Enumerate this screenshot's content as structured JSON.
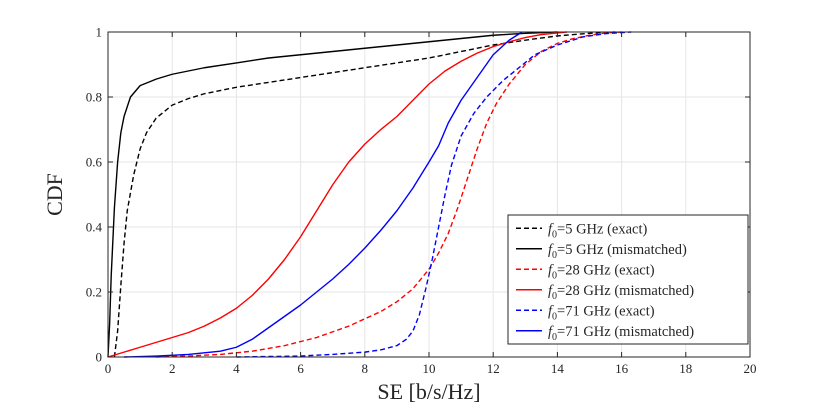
{
  "chart_data": {
    "type": "line",
    "title": "",
    "xlabel": "SE [b/s/Hz]",
    "ylabel": "CDF",
    "xlim": [
      0,
      20
    ],
    "ylim": [
      0,
      1
    ],
    "xticks": [
      "0",
      "2",
      "4",
      "6",
      "8",
      "10",
      "12",
      "14",
      "16",
      "18",
      "20"
    ],
    "yticks": [
      "0",
      "0.2",
      "0.4",
      "0.6",
      "0.8",
      "1"
    ],
    "grid": true,
    "legend_position": "bottom-right",
    "series": [
      {
        "name": "f0=5 GHz (exact)",
        "legend_var": "f",
        "legend_sub": "0",
        "legend_rest": "=5 GHz (exact)",
        "color": "#000000",
        "dash": "dashed",
        "points": [
          [
            0.2,
            0
          ],
          [
            0.3,
            0.08
          ],
          [
            0.4,
            0.22
          ],
          [
            0.5,
            0.35
          ],
          [
            0.6,
            0.45
          ],
          [
            0.8,
            0.56
          ],
          [
            1.0,
            0.64
          ],
          [
            1.2,
            0.69
          ],
          [
            1.5,
            0.735
          ],
          [
            2.0,
            0.775
          ],
          [
            2.5,
            0.795
          ],
          [
            3.0,
            0.81
          ],
          [
            4.0,
            0.83
          ],
          [
            5.0,
            0.845
          ],
          [
            6.0,
            0.86
          ],
          [
            7.0,
            0.875
          ],
          [
            8.0,
            0.89
          ],
          [
            9.0,
            0.905
          ],
          [
            10.0,
            0.92
          ],
          [
            11.0,
            0.94
          ],
          [
            12.0,
            0.96
          ],
          [
            13.0,
            0.975
          ],
          [
            14.0,
            0.988
          ],
          [
            15.0,
            0.996
          ],
          [
            15.8,
            1.0
          ]
        ]
      },
      {
        "name": "f0=5 GHz (mismatched)",
        "legend_var": "f",
        "legend_sub": "0",
        "legend_rest": "=5 GHz (mismatched)",
        "color": "#000000",
        "dash": "solid",
        "points": [
          [
            0,
            0
          ],
          [
            0.05,
            0.1
          ],
          [
            0.1,
            0.25
          ],
          [
            0.2,
            0.46
          ],
          [
            0.3,
            0.6
          ],
          [
            0.4,
            0.69
          ],
          [
            0.5,
            0.74
          ],
          [
            0.7,
            0.8
          ],
          [
            1.0,
            0.835
          ],
          [
            1.5,
            0.855
          ],
          [
            2.0,
            0.87
          ],
          [
            3.0,
            0.89
          ],
          [
            4.0,
            0.905
          ],
          [
            5.0,
            0.92
          ],
          [
            6.0,
            0.93
          ],
          [
            7.0,
            0.94
          ],
          [
            8.0,
            0.95
          ],
          [
            9.0,
            0.96
          ],
          [
            10.0,
            0.97
          ],
          [
            11.0,
            0.98
          ],
          [
            12.0,
            0.99
          ],
          [
            13.0,
            0.996
          ],
          [
            14.0,
            1.0
          ]
        ]
      },
      {
        "name": "f0=28 GHz (exact)",
        "legend_var": "f",
        "legend_sub": "0",
        "legend_rest": "=28 GHz (exact)",
        "color": "#ff0000",
        "dash": "dashed",
        "points": [
          [
            1.5,
            0
          ],
          [
            2.5,
            0.003
          ],
          [
            3.5,
            0.008
          ],
          [
            4.5,
            0.018
          ],
          [
            5.5,
            0.035
          ],
          [
            6.5,
            0.06
          ],
          [
            7.5,
            0.095
          ],
          [
            8.5,
            0.14
          ],
          [
            9.0,
            0.17
          ],
          [
            9.5,
            0.21
          ],
          [
            10.0,
            0.27
          ],
          [
            10.3,
            0.32
          ],
          [
            10.6,
            0.38
          ],
          [
            10.9,
            0.46
          ],
          [
            11.2,
            0.55
          ],
          [
            11.5,
            0.64
          ],
          [
            11.8,
            0.72
          ],
          [
            12.1,
            0.78
          ],
          [
            12.5,
            0.84
          ],
          [
            13.0,
            0.9
          ],
          [
            13.5,
            0.94
          ],
          [
            14.0,
            0.965
          ],
          [
            14.5,
            0.98
          ],
          [
            15.0,
            0.99
          ],
          [
            15.5,
            0.997
          ],
          [
            16.0,
            1.0
          ]
        ]
      },
      {
        "name": "f0=28 GHz (mismatched)",
        "legend_var": "f",
        "legend_sub": "0",
        "legend_rest": "=28 GHz (mismatched)",
        "color": "#ff0000",
        "dash": "solid",
        "points": [
          [
            0,
            0
          ],
          [
            0.5,
            0.015
          ],
          [
            1.0,
            0.03
          ],
          [
            1.5,
            0.045
          ],
          [
            2.0,
            0.06
          ],
          [
            2.5,
            0.075
          ],
          [
            3.0,
            0.095
          ],
          [
            3.5,
            0.12
          ],
          [
            4.0,
            0.15
          ],
          [
            4.5,
            0.19
          ],
          [
            5.0,
            0.24
          ],
          [
            5.5,
            0.3
          ],
          [
            6.0,
            0.37
          ],
          [
            6.5,
            0.45
          ],
          [
            7.0,
            0.53
          ],
          [
            7.5,
            0.6
          ],
          [
            8.0,
            0.655
          ],
          [
            8.5,
            0.7
          ],
          [
            9.0,
            0.74
          ],
          [
            9.5,
            0.79
          ],
          [
            10.0,
            0.84
          ],
          [
            10.5,
            0.88
          ],
          [
            11.0,
            0.91
          ],
          [
            11.5,
            0.935
          ],
          [
            12.0,
            0.955
          ],
          [
            12.5,
            0.97
          ],
          [
            13.0,
            0.983
          ],
          [
            13.5,
            0.992
          ],
          [
            14.0,
            0.997
          ],
          [
            14.3,
            1.0
          ]
        ]
      },
      {
        "name": "f0=71 GHz (exact)",
        "legend_var": "f",
        "legend_sub": "0",
        "legend_rest": "=71 GHz (exact)",
        "color": "#0000ff",
        "dash": "dashed",
        "points": [
          [
            4.0,
            0
          ],
          [
            6.0,
            0.003
          ],
          [
            7.0,
            0.008
          ],
          [
            8.0,
            0.015
          ],
          [
            8.5,
            0.022
          ],
          [
            9.0,
            0.035
          ],
          [
            9.3,
            0.055
          ],
          [
            9.5,
            0.08
          ],
          [
            9.7,
            0.13
          ],
          [
            9.9,
            0.21
          ],
          [
            10.1,
            0.3
          ],
          [
            10.3,
            0.4
          ],
          [
            10.5,
            0.5
          ],
          [
            10.7,
            0.59
          ],
          [
            11.0,
            0.68
          ],
          [
            11.4,
            0.75
          ],
          [
            11.8,
            0.8
          ],
          [
            12.3,
            0.85
          ],
          [
            12.8,
            0.89
          ],
          [
            13.3,
            0.93
          ],
          [
            14.0,
            0.96
          ],
          [
            14.8,
            0.985
          ],
          [
            15.5,
            0.995
          ],
          [
            16.3,
            1.0
          ]
        ]
      },
      {
        "name": "f0=71 GHz (mismatched)",
        "legend_var": "f",
        "legend_sub": "0",
        "legend_rest": "=71 GHz (mismatched)",
        "color": "#0000ff",
        "dash": "solid",
        "points": [
          [
            0.5,
            0
          ],
          [
            1.5,
            0.003
          ],
          [
            2.5,
            0.008
          ],
          [
            3.5,
            0.018
          ],
          [
            4.0,
            0.03
          ],
          [
            4.5,
            0.055
          ],
          [
            5.0,
            0.09
          ],
          [
            5.5,
            0.125
          ],
          [
            6.0,
            0.16
          ],
          [
            6.5,
            0.2
          ],
          [
            7.0,
            0.24
          ],
          [
            7.5,
            0.285
          ],
          [
            8.0,
            0.335
          ],
          [
            8.5,
            0.39
          ],
          [
            9.0,
            0.45
          ],
          [
            9.5,
            0.52
          ],
          [
            10.0,
            0.6
          ],
          [
            10.3,
            0.65
          ],
          [
            10.6,
            0.72
          ],
          [
            11.0,
            0.79
          ],
          [
            11.5,
            0.86
          ],
          [
            12.0,
            0.93
          ],
          [
            12.5,
            0.975
          ],
          [
            12.9,
            1.0
          ]
        ]
      }
    ]
  }
}
